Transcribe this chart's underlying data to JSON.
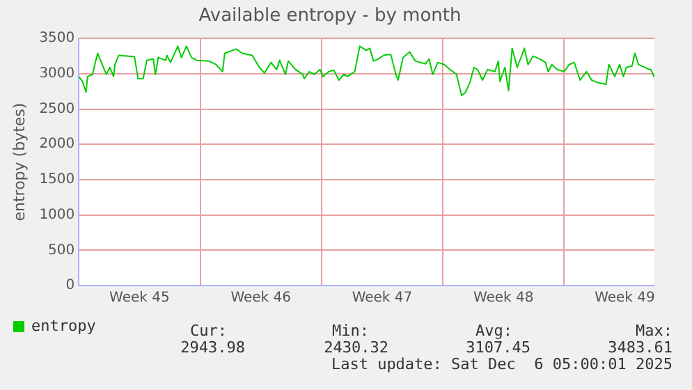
{
  "chart_data": {
    "type": "line",
    "title": "Available entropy - by month",
    "ylabel": "entropy (bytes)",
    "x": [
      "2025-11-03T00:00",
      "2025-11-03T05:00",
      "2025-11-03T10:00",
      "2025-11-03T12:00",
      "2025-11-03T19:00",
      "2025-11-03T22:00",
      "2025-11-04T02:00",
      "2025-11-04T10:00",
      "2025-11-04T14:00",
      "2025-11-04T19:00",
      "2025-11-05T00:00",
      "2025-11-05T02:00",
      "2025-11-05T07:00",
      "2025-11-05T19:00",
      "2025-11-06T05:00",
      "2025-11-06T10:00",
      "2025-11-06T17:00",
      "2025-11-06T22:00",
      "2025-11-07T07:00",
      "2025-11-07T10:00",
      "2025-11-07T14:00",
      "2025-11-08T00:00",
      "2025-11-08T02:00",
      "2025-11-08T07:00",
      "2025-11-08T17:00",
      "2025-11-08T22:00",
      "2025-11-09T05:00",
      "2025-11-09T12:00",
      "2025-11-09T19:00",
      "2025-11-10T12:00",
      "2025-11-10T22:00",
      "2025-11-11T07:00",
      "2025-11-11T10:00",
      "2025-11-12T02:00",
      "2025-11-12T10:00",
      "2025-11-13T00:00",
      "2025-11-13T10:00",
      "2025-11-13T17:00",
      "2025-11-14T02:00",
      "2025-11-14T10:00",
      "2025-11-14T14:00",
      "2025-11-14T22:00",
      "2025-11-15T02:00",
      "2025-11-15T12:00",
      "2025-11-15T22:00",
      "2025-11-16T00:00",
      "2025-11-16T07:00",
      "2025-11-16T14:00",
      "2025-11-16T22:00",
      "2025-11-17T02:00",
      "2025-11-17T10:00",
      "2025-11-17T17:00",
      "2025-11-18T00:00",
      "2025-11-18T07:00",
      "2025-11-18T12:00",
      "2025-11-18T22:00",
      "2025-11-19T05:00",
      "2025-11-19T14:00",
      "2025-11-19T19:00",
      "2025-11-20T00:00",
      "2025-11-20T07:00",
      "2025-11-20T14:00",
      "2025-11-20T19:00",
      "2025-11-21T00:00",
      "2025-11-21T07:00",
      "2025-11-21T10:00",
      "2025-11-21T17:00",
      "2025-11-22T02:00",
      "2025-11-22T10:00",
      "2025-11-23T00:00",
      "2025-11-23T05:00",
      "2025-11-23T10:00",
      "2025-11-23T17:00",
      "2025-11-24T02:00",
      "2025-11-24T10:00",
      "2025-11-24T19:00",
      "2025-11-25T02:00",
      "2025-11-25T07:00",
      "2025-11-25T14:00",
      "2025-11-25T19:00",
      "2025-11-26T00:00",
      "2025-11-26T07:00",
      "2025-11-26T14:00",
      "2025-11-27T00:00",
      "2025-11-27T05:00",
      "2025-11-27T07:00",
      "2025-11-27T14:00",
      "2025-11-27T19:00",
      "2025-11-28T00:00",
      "2025-11-28T07:00",
      "2025-11-28T17:00",
      "2025-11-28T22:00",
      "2025-11-29T05:00",
      "2025-11-29T14:00",
      "2025-11-29T22:00",
      "2025-11-30T02:00",
      "2025-11-30T07:00",
      "2025-11-30T14:00",
      "2025-12-01T00:00",
      "2025-12-01T07:00",
      "2025-12-01T14:00",
      "2025-12-01T22:00",
      "2025-12-02T07:00",
      "2025-12-02T14:00",
      "2025-12-03T00:00",
      "2025-12-03T10:00",
      "2025-12-03T14:00",
      "2025-12-03T22:00",
      "2025-12-04T05:00",
      "2025-12-04T10:00",
      "2025-12-04T14:00",
      "2025-12-04T22:00",
      "2025-12-05T02:00",
      "2025-12-05T07:00",
      "2025-12-05T22:00",
      "2025-12-06T00:00",
      "2025-12-06T05:00"
    ],
    "series": [
      {
        "name": "entropy",
        "color": "#00cc00",
        "values": [
          2960,
          2890,
          2740,
          2960,
          2990,
          3130,
          3290,
          3090,
          2990,
          3090,
          2960,
          3130,
          3260,
          3250,
          3240,
          2930,
          2930,
          3190,
          3210,
          2990,
          3230,
          3190,
          3260,
          3160,
          3390,
          3230,
          3390,
          3230,
          3190,
          3180,
          3130,
          3030,
          3290,
          3350,
          3290,
          3260,
          3090,
          3010,
          3160,
          3060,
          3190,
          2990,
          3180,
          3060,
          2990,
          2930,
          3030,
          2990,
          3060,
          2960,
          3030,
          3050,
          2910,
          2990,
          2960,
          3030,
          3390,
          3330,
          3360,
          3180,
          3210,
          3260,
          3270,
          3270,
          2990,
          2910,
          3230,
          3310,
          3180,
          3140,
          3210,
          2990,
          3160,
          3130,
          3060,
          2990,
          2690,
          2730,
          2890,
          3090,
          3060,
          2910,
          3060,
          3030,
          3180,
          2890,
          3090,
          2760,
          3360,
          3090,
          3360,
          3130,
          3250,
          3210,
          3160,
          3030,
          3130,
          3060,
          3030,
          3130,
          3160,
          2910,
          3030,
          2910,
          2870,
          2850,
          3130,
          2960,
          3130,
          2960,
          3090,
          3110,
          3290,
          3130,
          3060,
          3060,
          2950
        ]
      }
    ],
    "xlim": [
      "2025-11-03T00:00",
      "2025-12-06T05:00"
    ],
    "xticks": [
      {
        "value": "2025-11-06T12:00",
        "label": "Week 45"
      },
      {
        "value": "2025-11-10",
        "label": null
      },
      {
        "value": "2025-11-13T12:00",
        "label": "Week 46"
      },
      {
        "value": "2025-11-17",
        "label": null
      },
      {
        "value": "2025-11-20T12:00",
        "label": "Week 47"
      },
      {
        "value": "2025-11-24",
        "label": null
      },
      {
        "value": "2025-11-27T12:00",
        "label": "Week 48"
      },
      {
        "value": "2025-12-01",
        "label": null
      },
      {
        "value": "2025-12-04T12:00",
        "label": "Week 49"
      }
    ],
    "ylim": [
      0,
      3500
    ],
    "yticks": [
      0,
      500,
      1000,
      1500,
      2000,
      2500,
      3000,
      3500
    ],
    "grid": true,
    "legend": "bottom left",
    "marker": "none",
    "line_style": "solid",
    "annotations": [
      "Cur:",
      "Min:",
      "Avg:",
      "Max:",
      "2943.98",
      "2430.32",
      "3107.45",
      "3483.61",
      "Last update: Sat Dec  6 05:00:01 2025"
    ]
  }
}
